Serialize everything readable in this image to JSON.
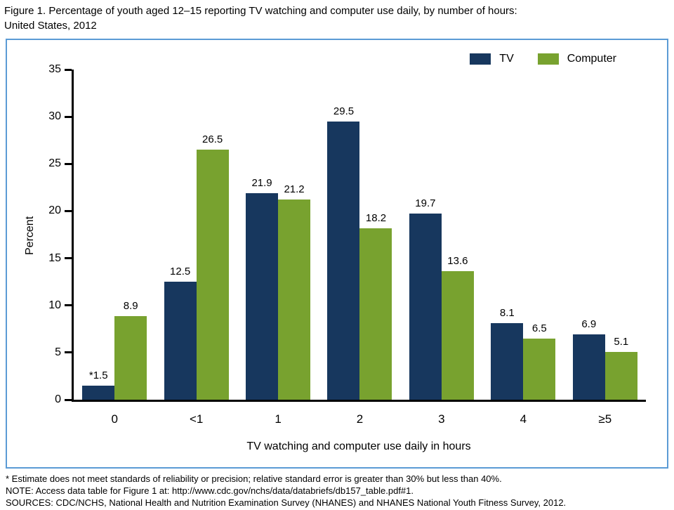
{
  "figure": {
    "title_lines": [
      "Figure 1. Percentage of youth aged 12–15 reporting TV watching and computer use daily, by number of hours:",
      "United States, 2012"
    ],
    "border_color": "#5b9bd5"
  },
  "chart_data": {
    "type": "bar",
    "title": "Figure 1. Percentage of youth aged 12–15 reporting TV watching and computer use daily, by number of hours: United States, 2012",
    "categories": [
      "0",
      "<1",
      "1",
      "2",
      "3",
      "4",
      "≥5"
    ],
    "series": [
      {
        "name": "TV",
        "color": "#17375e",
        "values": [
          1.5,
          12.5,
          21.9,
          29.5,
          19.7,
          8.1,
          6.9
        ],
        "labels": [
          "*1.5",
          "12.5",
          "21.9",
          "29.5",
          "19.7",
          "8.1",
          "6.9"
        ]
      },
      {
        "name": "Computer",
        "color": "#78a22f",
        "values": [
          8.9,
          26.5,
          21.2,
          18.2,
          13.6,
          6.5,
          5.1
        ],
        "labels": [
          "8.9",
          "26.5",
          "21.2",
          "18.2",
          "13.6",
          "6.5",
          "5.1"
        ]
      }
    ],
    "xlabel": "TV watching and computer use daily in hours",
    "ylabel": "Percent",
    "ylim": [
      0,
      35
    ],
    "yticks": [
      0,
      5,
      10,
      15,
      20,
      25,
      30,
      35
    ],
    "legend_position": "top-right",
    "grid": false
  },
  "footnotes": [
    "* Estimate does not meet standards of reliability or precision; relative standard error is greater than 30% but less than 40%.",
    "NOTE: Access data table for Figure 1 at: http://www.cdc.gov/nchs/data/databriefs/db157_table.pdf#1.",
    "SOURCES: CDC/NCHS, National Health and Nutrition Examination Survey (NHANES) and NHANES National Youth Fitness Survey, 2012."
  ]
}
